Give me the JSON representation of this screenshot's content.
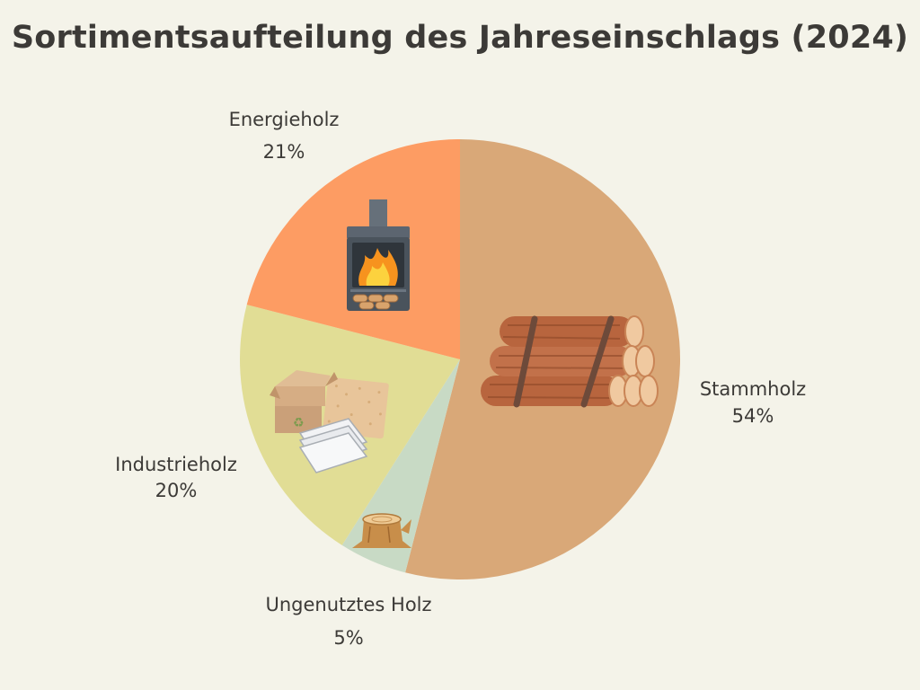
{
  "chart_data": {
    "type": "pie",
    "title": "Sortimentsaufteilung des Jahreseinschlags (2024)",
    "slices": [
      {
        "name": "Stammholz",
        "value": 54,
        "label": "54%",
        "color": "#d9a878",
        "icon": "log-stack-icon"
      },
      {
        "name": "Ungenutztes Holz",
        "value": 5,
        "label": "5%",
        "color": "#c8dac5",
        "icon": "tree-stump-icon"
      },
      {
        "name": "Industrieholz",
        "value": 20,
        "label": "20%",
        "color": "#e1dd95",
        "icon": "paper-boxes-icon"
      },
      {
        "name": "Energieholz",
        "value": 21,
        "label": "21%",
        "color": "#fd9c63",
        "icon": "wood-stove-icon"
      }
    ]
  }
}
